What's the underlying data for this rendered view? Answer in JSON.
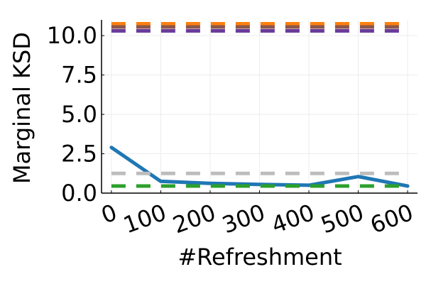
{
  "chart_data": {
    "type": "line",
    "title": "",
    "xlabel": "#Refreshment",
    "ylabel": "Marginal KSD",
    "xlim": [
      -20,
      620
    ],
    "ylim": [
      0,
      11
    ],
    "x_ticks": [
      0,
      100,
      200,
      300,
      400,
      500,
      600
    ],
    "x_tick_labels": [
      "0",
      "100",
      "200",
      "300",
      "400",
      "500",
      "600"
    ],
    "y_ticks": [
      0,
      2.5,
      5,
      7.5,
      10
    ],
    "y_tick_labels": [
      "0.0",
      "2.5",
      "5.0",
      "7.5",
      "10.0"
    ],
    "grid": true,
    "legend": "none",
    "series": [
      {
        "style": "solid",
        "color": "#1f77b4",
        "x": [
          0,
          100,
          200,
          300,
          400,
          500,
          600
        ],
        "y": [
          2.9,
          0.75,
          0.62,
          0.55,
          0.5,
          1.05,
          0.45
        ]
      },
      {
        "style": "dashed",
        "color": "#ff7f0e",
        "x": [
          0,
          600
        ],
        "y": [
          10.75,
          10.75
        ]
      },
      {
        "style": "dashed",
        "color": "#8c564b",
        "x": [
          0,
          600
        ],
        "y": [
          10.55,
          10.55
        ]
      },
      {
        "style": "dashed",
        "color": "#6a3d9a",
        "x": [
          0,
          600
        ],
        "y": [
          10.3,
          10.3
        ]
      },
      {
        "style": "dashed",
        "color": "#bdbdbd",
        "x": [
          0,
          600
        ],
        "y": [
          1.25,
          1.25
        ]
      },
      {
        "style": "dashed",
        "color": "#2ca02c",
        "x": [
          0,
          600
        ],
        "y": [
          0.45,
          0.45
        ]
      }
    ]
  }
}
